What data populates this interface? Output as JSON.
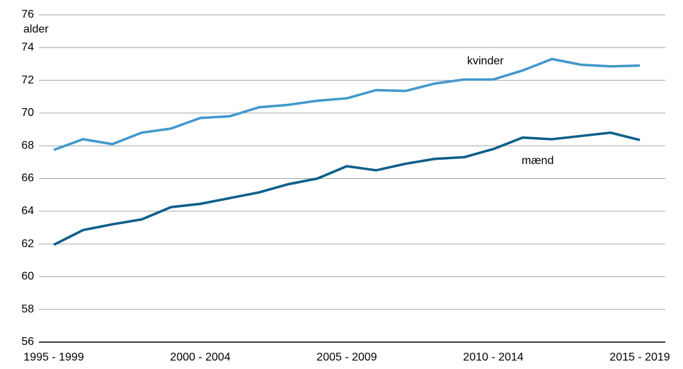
{
  "chart_data": {
    "type": "line",
    "y_label": "alder",
    "categories": [
      "1995 - 1999",
      null,
      null,
      null,
      null,
      "2000 - 2004",
      null,
      null,
      null,
      null,
      "2005 - 2009",
      null,
      null,
      null,
      null,
      "2010 - 2014",
      null,
      null,
      null,
      null,
      "2015 - 2019"
    ],
    "series": [
      {
        "name": "kvinder",
        "color": "#4398cc",
        "values": [
          67.75,
          68.4,
          68.1,
          68.8,
          69.05,
          69.7,
          69.8,
          70.35,
          70.5,
          70.75,
          70.9,
          71.4,
          71.35,
          71.8,
          72.05,
          72.05,
          72.6,
          73.3,
          72.95,
          72.85,
          72.9
        ]
      },
      {
        "name": "mænd",
        "color": "#0b5f8a",
        "values": [
          61.95,
          62.85,
          63.2,
          63.5,
          64.25,
          64.45,
          64.8,
          65.15,
          65.65,
          66.0,
          66.75,
          66.5,
          66.9,
          67.2,
          67.3,
          67.8,
          68.5,
          68.4,
          68.6,
          68.8,
          68.35
        ]
      }
    ],
    "ylim": [
      56,
      76
    ],
    "yticks": [
      56,
      58,
      60,
      62,
      64,
      66,
      68,
      70,
      72,
      74,
      76
    ],
    "grid": true
  }
}
